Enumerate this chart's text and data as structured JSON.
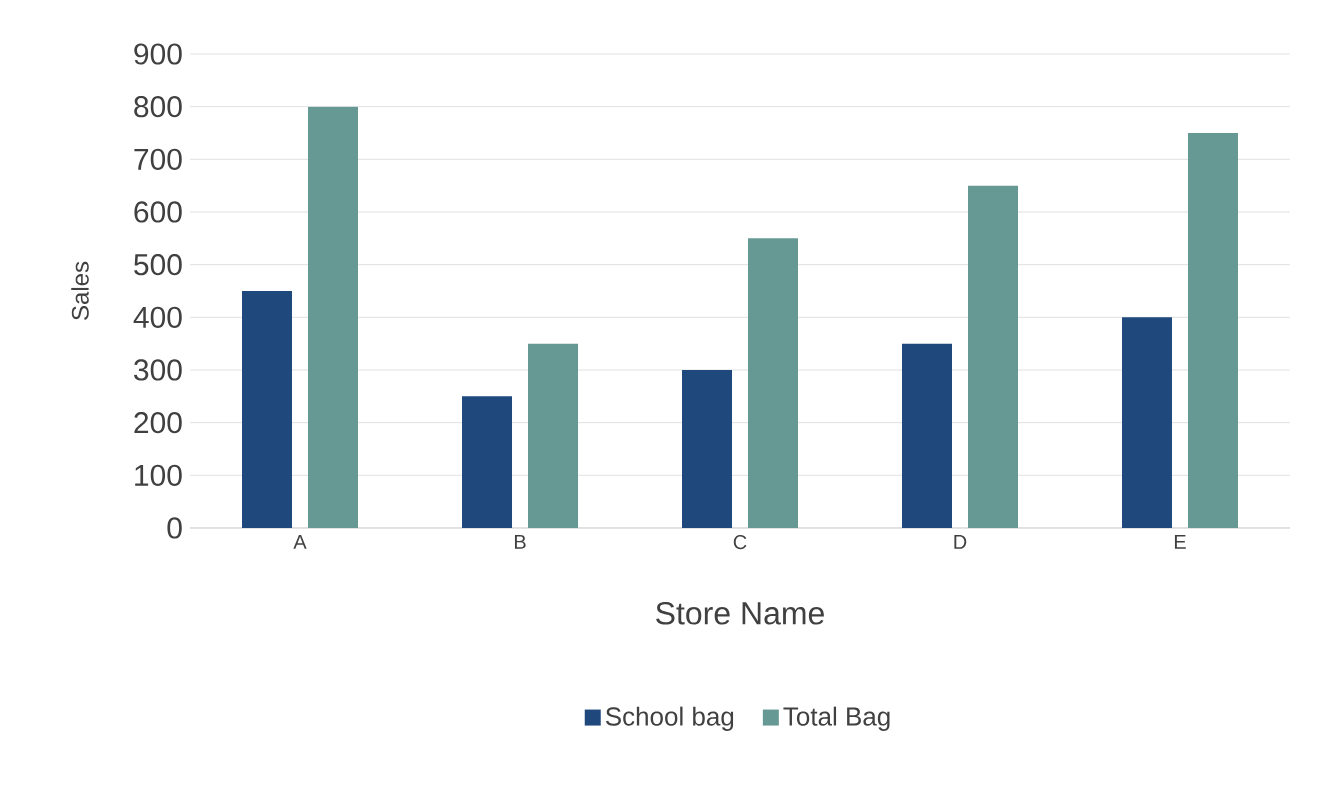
{
  "chart_data": {
    "type": "bar",
    "xlabel": "Store Name",
    "ylabel": "Sales",
    "categories": [
      "A",
      "B",
      "C",
      "D",
      "E"
    ],
    "series": [
      {
        "name": "School bag",
        "color": "#1f497d",
        "values": [
          450,
          250,
          300,
          350,
          400
        ]
      },
      {
        "name": "Total Bag",
        "color": "#669994",
        "values": [
          800,
          350,
          550,
          650,
          750
        ]
      }
    ],
    "ylim": [
      0,
      900
    ],
    "yticks": [
      0,
      100,
      200,
      300,
      400,
      500,
      600,
      700,
      800,
      900
    ],
    "grid": "y",
    "legend": "bottom"
  }
}
